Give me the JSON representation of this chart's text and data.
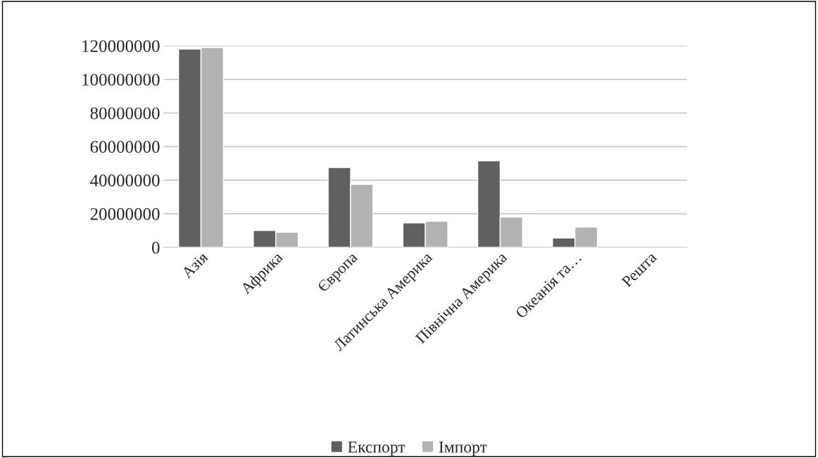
{
  "chart_data": {
    "type": "bar",
    "categories": [
      "Азія",
      "Африка",
      "Європа",
      "Латинська Америка",
      "Північна Америка",
      "Океанія та…",
      "Решта"
    ],
    "series": [
      {
        "name": "Експорт",
        "color": "#606060",
        "values": [
          118000000,
          10000000,
          47500000,
          14500000,
          51500000,
          5500000,
          null
        ]
      },
      {
        "name": "Імпорт",
        "color": "#b2b2b2",
        "values": [
          119000000,
          9000000,
          37500000,
          15500000,
          18000000,
          12000000,
          null
        ]
      }
    ],
    "ylim": [
      0,
      120000000
    ],
    "yticks": [
      0,
      20000000,
      40000000,
      60000000,
      80000000,
      100000000,
      120000000
    ],
    "grid": "y",
    "legend": "bottom"
  }
}
